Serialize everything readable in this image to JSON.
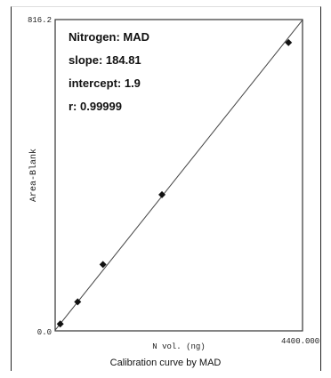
{
  "chart_data": {
    "type": "scatter",
    "title": "",
    "xlabel": "N vol. (ng)",
    "ylabel": "Area-Blank",
    "xlim": [
      0,
      4400
    ],
    "ylim": [
      0,
      816.2
    ],
    "x_tick_labels": [
      "4400.000"
    ],
    "y_tick_labels": [
      "0.0",
      "816.2"
    ],
    "points": [
      {
        "x": 90,
        "y": 18
      },
      {
        "x": 400,
        "y": 76
      },
      {
        "x": 850,
        "y": 174
      },
      {
        "x": 1900,
        "y": 357
      },
      {
        "x": 4150,
        "y": 756
      }
    ],
    "fit_line": {
      "slope": 0.18481,
      "intercept": 1.9
    },
    "annotations": {
      "name": "Nitrogen: MAD",
      "slope": "slope: 184.81",
      "intercept": "intercept: 1.9",
      "r": "r: 0.99999"
    },
    "grid": false,
    "caption": "Calibration curve by MAD"
  }
}
